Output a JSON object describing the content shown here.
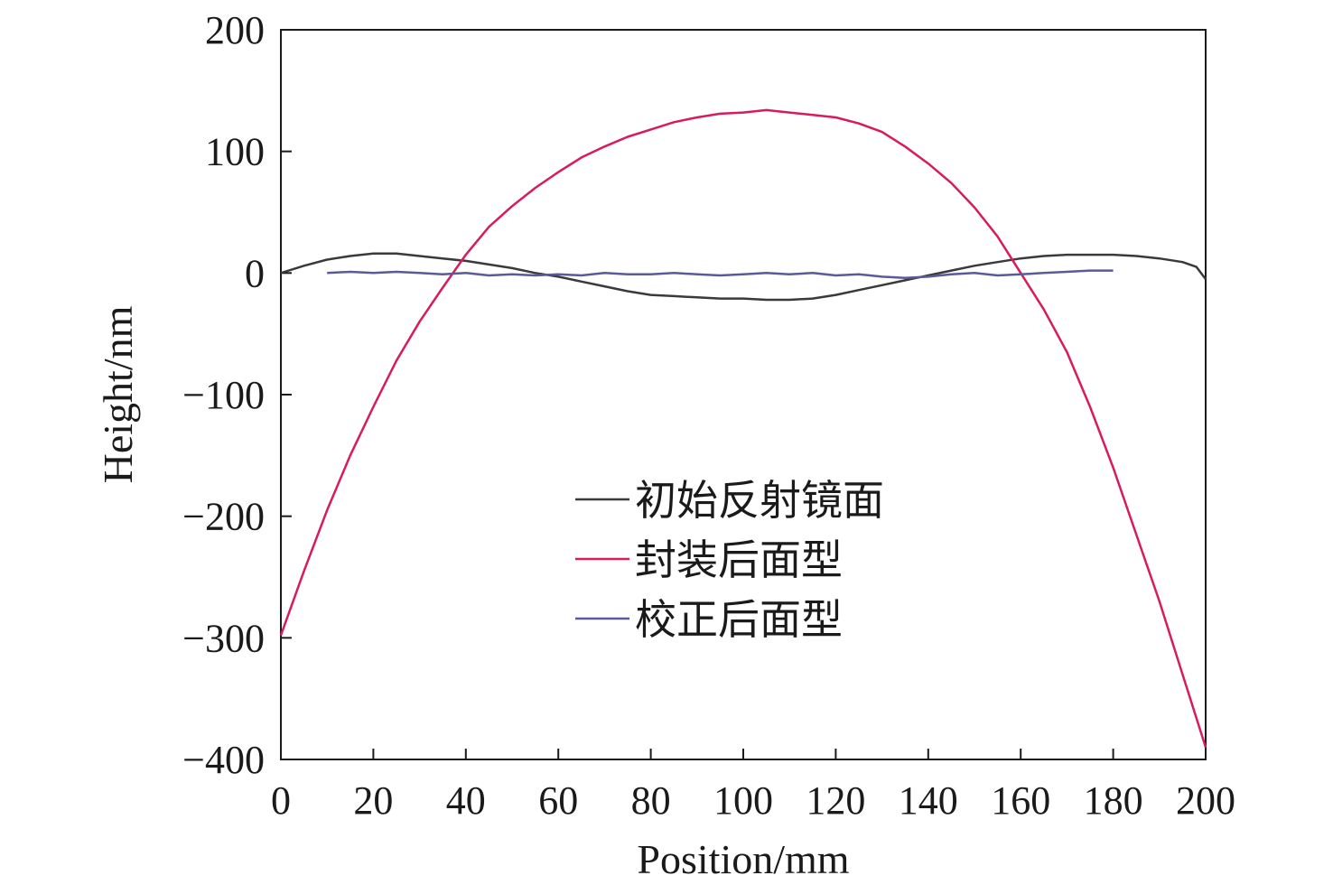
{
  "chart_data": {
    "type": "line",
    "xlabel": "Position/mm",
    "ylabel": "Height/nm",
    "xlim": [
      0,
      200
    ],
    "ylim": [
      -400,
      200
    ],
    "xticks": [
      0,
      20,
      40,
      60,
      80,
      100,
      120,
      140,
      160,
      180,
      200
    ],
    "yticks": [
      -400,
      -300,
      -200,
      -100,
      0,
      100,
      200
    ],
    "xtick_labels": [
      "0",
      "20",
      "40",
      "60",
      "80",
      "100",
      "120",
      "140",
      "160",
      "180",
      "200"
    ],
    "ytick_labels": [
      "−400",
      "−300",
      "−200",
      "−100",
      "0",
      "100",
      "200"
    ],
    "grid": false,
    "legend_position": "center",
    "series": [
      {
        "name": "初始反射镜面",
        "color": "#3a3a3a",
        "x": [
          0,
          5,
          10,
          15,
          20,
          25,
          30,
          35,
          40,
          45,
          50,
          55,
          60,
          65,
          70,
          75,
          80,
          85,
          90,
          95,
          100,
          105,
          110,
          115,
          120,
          125,
          130,
          135,
          140,
          145,
          150,
          155,
          160,
          165,
          170,
          175,
          180,
          185,
          190,
          195,
          198,
          200
        ],
        "y": [
          0,
          6,
          11,
          14,
          16,
          16,
          14,
          12,
          10,
          7,
          4,
          0,
          -3,
          -7,
          -11,
          -15,
          -18,
          -19,
          -20,
          -21,
          -21,
          -22,
          -22,
          -21,
          -18,
          -14,
          -10,
          -6,
          -2,
          2,
          6,
          9,
          12,
          14,
          15,
          15,
          15,
          14,
          12,
          9,
          5,
          -5
        ]
      },
      {
        "name": "封装后面型",
        "color": "#d81b5a",
        "x": [
          0,
          5,
          10,
          15,
          20,
          25,
          30,
          35,
          40,
          45,
          50,
          55,
          60,
          65,
          70,
          75,
          80,
          85,
          90,
          95,
          100,
          105,
          110,
          115,
          120,
          125,
          130,
          135,
          140,
          145,
          150,
          155,
          160,
          165,
          170,
          175,
          180,
          185,
          190,
          195,
          200
        ],
        "y": [
          -298,
          -245,
          -195,
          -150,
          -110,
          -72,
          -40,
          -12,
          15,
          38,
          55,
          70,
          83,
          95,
          104,
          112,
          118,
          124,
          128,
          131,
          132,
          134,
          132,
          130,
          128,
          123,
          116,
          104,
          90,
          74,
          54,
          30,
          0,
          -30,
          -65,
          -110,
          -160,
          -215,
          -270,
          -330,
          -390
        ]
      },
      {
        "name": "校正后面型",
        "color": "#5a5a9a",
        "x": [
          10,
          15,
          20,
          25,
          30,
          35,
          40,
          45,
          50,
          55,
          60,
          65,
          70,
          75,
          80,
          85,
          90,
          95,
          100,
          105,
          110,
          115,
          120,
          125,
          130,
          135,
          140,
          145,
          150,
          155,
          160,
          165,
          170,
          175,
          180
        ],
        "y": [
          0,
          1,
          0,
          1,
          0,
          -1,
          0,
          -2,
          -1,
          -2,
          -1,
          -2,
          0,
          -1,
          -1,
          0,
          -1,
          -2,
          -1,
          0,
          -1,
          0,
          -2,
          -1,
          -3,
          -4,
          -3,
          -1,
          0,
          -2,
          -1,
          0,
          1,
          2,
          2
        ]
      }
    ]
  }
}
